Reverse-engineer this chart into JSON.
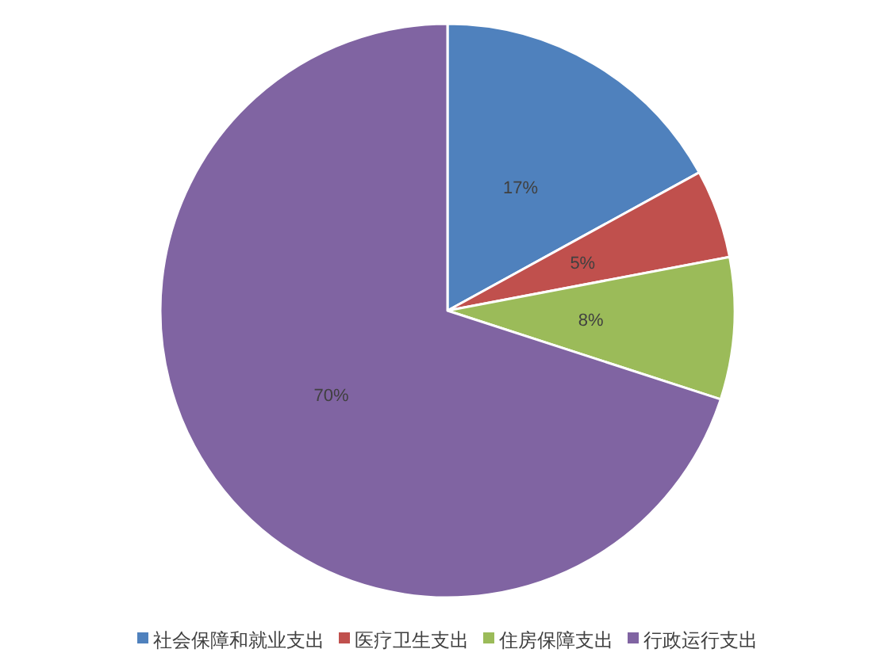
{
  "chart_data": {
    "type": "pie",
    "categories": [
      "社会保障和就业支出",
      "医疗卫生支出",
      "住房保障支出",
      "行政运行支出"
    ],
    "values": [
      17,
      5,
      8,
      70
    ],
    "colors": [
      "#4f81bd",
      "#c0504d",
      "#9bbb59",
      "#8064a2"
    ],
    "value_labels": [
      "17%",
      "5%",
      "8%",
      "70%"
    ],
    "legend": "bottom"
  }
}
